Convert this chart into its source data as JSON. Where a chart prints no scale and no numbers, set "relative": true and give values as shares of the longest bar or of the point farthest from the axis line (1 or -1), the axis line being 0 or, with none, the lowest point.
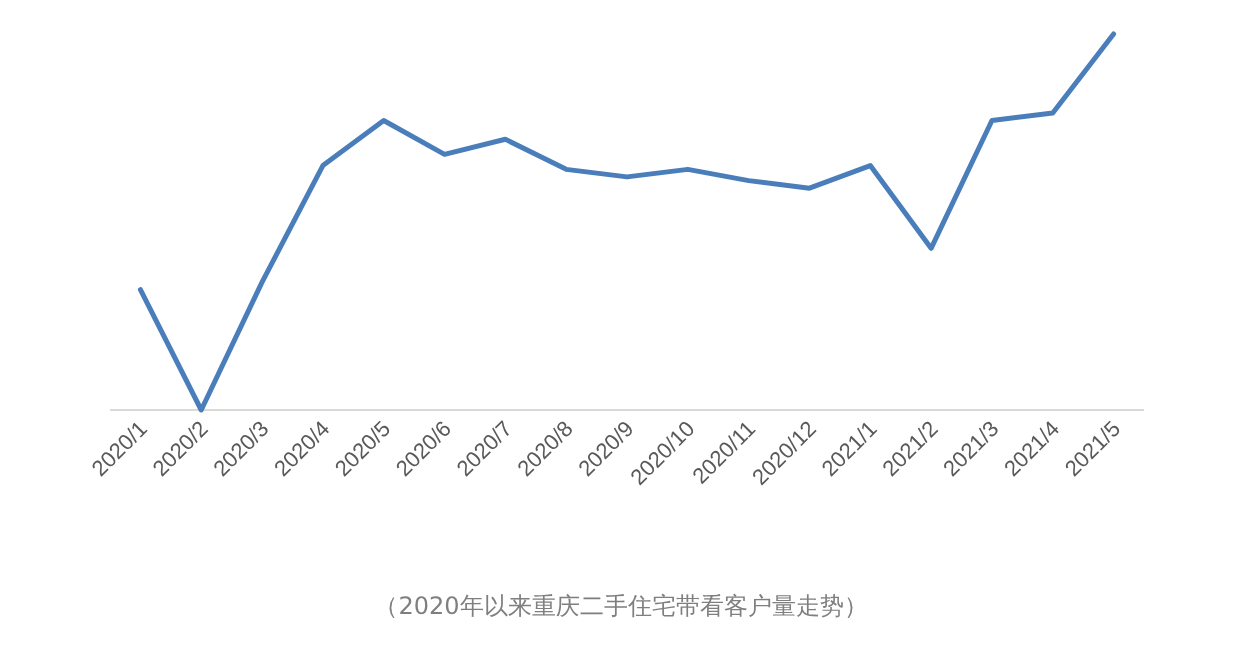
{
  "chart_data": {
    "type": "line",
    "relative": true,
    "categories": [
      "2020/1",
      "2020/2",
      "2020/3",
      "2020/4",
      "2020/5",
      "2020/6",
      "2020/7",
      "2020/8",
      "2020/9",
      "2020/10",
      "2020/11",
      "2020/12",
      "2021/1",
      "2021/2",
      "2021/3",
      "2021/4",
      "2021/5"
    ],
    "series": [
      {
        "color": "#4a7ebb",
        "values": [
          0.32,
          0.0,
          0.34,
          0.65,
          0.77,
          0.68,
          0.72,
          0.64,
          0.62,
          0.64,
          0.61,
          0.59,
          0.65,
          0.43,
          0.77,
          0.79,
          1.0
        ]
      }
    ],
    "annotations": [
      "（2020年以来重庆二手住宅带看客户量走势）"
    ]
  }
}
